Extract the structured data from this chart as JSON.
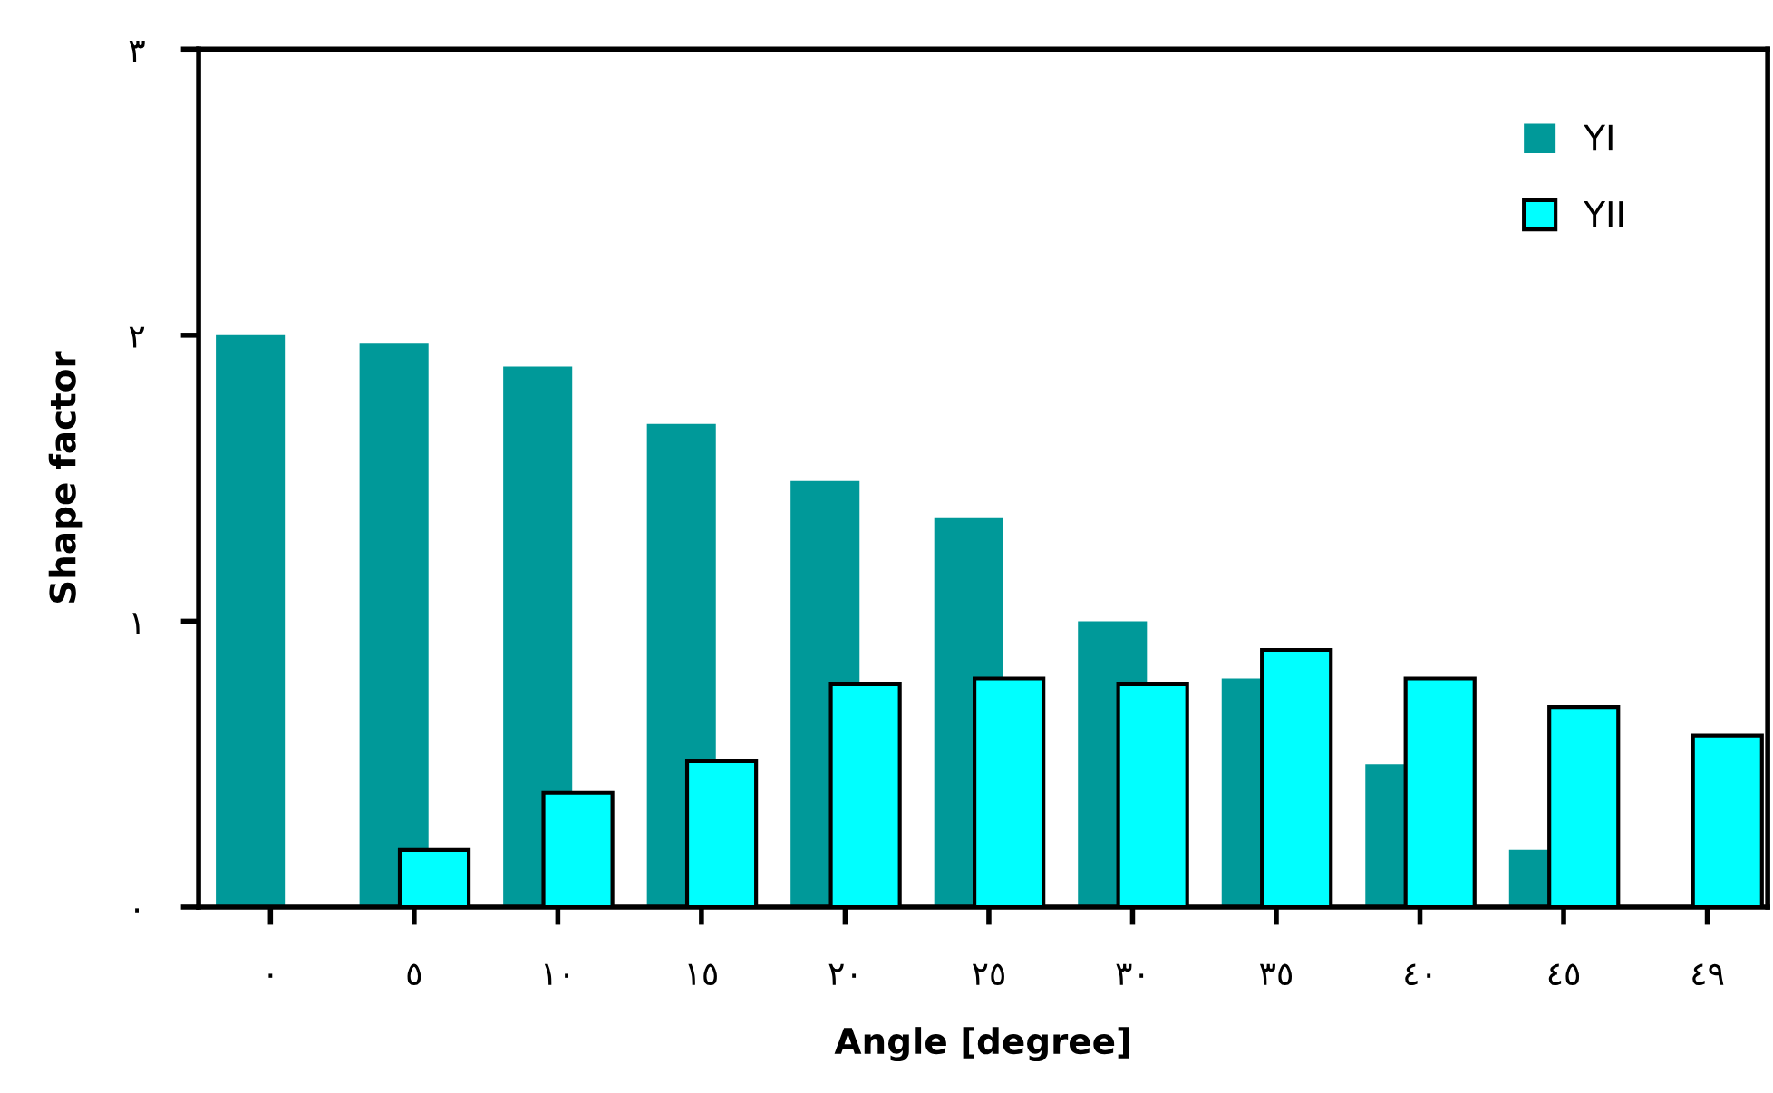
{
  "chart_data": {
    "type": "bar",
    "xlabel": "Angle [degree]",
    "ylabel": "Shape factor",
    "categories": [
      "٠",
      "٥",
      "١٠",
      "١٥",
      "٢٠",
      "٢٥",
      "٣٠",
      "٣٥",
      "٤٠",
      "٤٥",
      "٤٩"
    ],
    "series": [
      {
        "name": "YI",
        "color": "#009999",
        "values": [
          2.0,
          1.97,
          1.89,
          1.69,
          1.49,
          1.36,
          1.0,
          0.8,
          0.5,
          0.2,
          null
        ]
      },
      {
        "name": "YII",
        "color": "#00ffff",
        "values": [
          null,
          0.2,
          0.4,
          0.51,
          0.78,
          0.8,
          0.78,
          0.9,
          0.8,
          0.7,
          0.6
        ]
      }
    ],
    "ylim": [
      0,
      3
    ],
    "yticks": [
      {
        "value": 0,
        "label": "٠"
      },
      {
        "value": 1,
        "label": "١"
      },
      {
        "value": 2,
        "label": "٢"
      },
      {
        "value": 3,
        "label": "٣"
      }
    ],
    "grid": false,
    "legend": "top right"
  }
}
